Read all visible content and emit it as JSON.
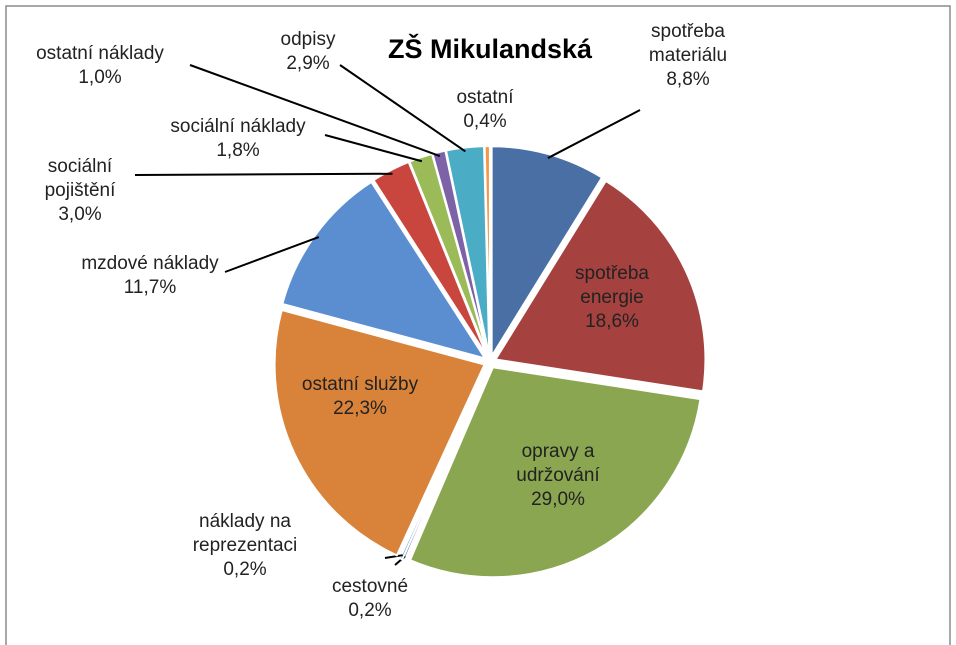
{
  "chart_data": {
    "type": "pie",
    "title": "ZŠ Mikulandská",
    "categories": [
      "spotřeba materiálu",
      "spotřeba energie",
      "opravy a udržování",
      "cestovné",
      "náklady na reprezentaci",
      "ostatní služby",
      "mzdové náklady",
      "sociální pojištění",
      "sociální náklady",
      "ostatní náklady",
      "odpisy",
      "ostatní"
    ],
    "values": [
      8.8,
      18.6,
      29.0,
      0.2,
      0.2,
      22.3,
      11.7,
      3.0,
      1.8,
      1.0,
      2.9,
      0.4
    ],
    "value_labels": [
      "8,8%",
      "18,6%",
      "29,0%",
      "0,2%",
      "0,2%",
      "22,3%",
      "11,7%",
      "3,0%",
      "1,8%",
      "1,0%",
      "2,9%",
      "0,4%"
    ],
    "colors": [
      "#4a6fa5",
      "#a5423f",
      "#8aa650",
      "#7a5fa0",
      "#3f9fc0",
      "#d9833a",
      "#5b8ed0",
      "#c9463f",
      "#9bbb59",
      "#7e62a8",
      "#4bacc6",
      "#f79646"
    ]
  }
}
